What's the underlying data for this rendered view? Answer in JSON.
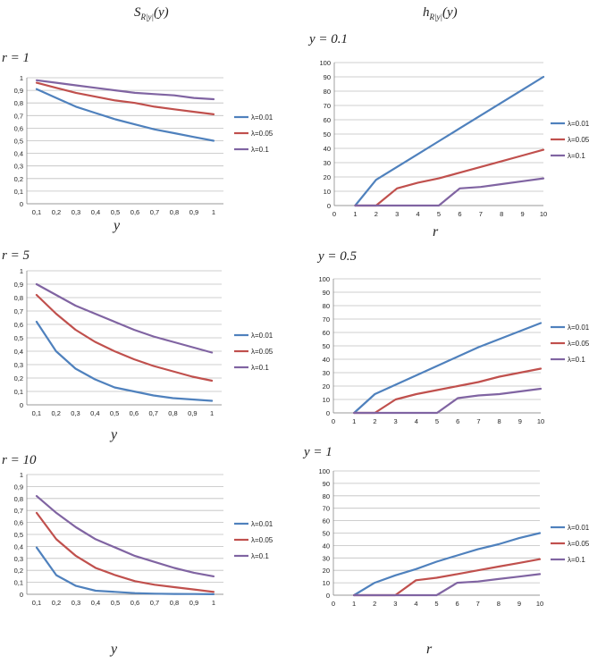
{
  "column_titles": {
    "left": "S",
    "left_sub": "R|y|",
    "left_arg": "(y)",
    "right": "h",
    "right_sub": "R|y|",
    "right_arg": "(y)"
  },
  "colors": {
    "blue": "#4f81bd",
    "red": "#c0504d",
    "purple": "#8064a2",
    "grid": "#bfbfbf",
    "axis": "#888888"
  },
  "chart_data": [
    {
      "id": "left-r1",
      "type": "line",
      "panel_label": "r = 1",
      "xlabel": "y",
      "categories": [
        "0,1",
        "0,2",
        "0,3",
        "0,4",
        "0,5",
        "0,6",
        "0,7",
        "0,8",
        "0,9",
        "1"
      ],
      "ylim": [
        0,
        1
      ],
      "yticks": [
        "0",
        "0,1",
        "0,2",
        "0,3",
        "0,4",
        "0,5",
        "0,6",
        "0,7",
        "0,8",
        "0,9",
        "1"
      ],
      "grid": true,
      "legend": "right",
      "series": [
        {
          "name": "λ=0.01",
          "color": "#4f81bd",
          "values": [
            0.91,
            0.84,
            0.77,
            0.72,
            0.67,
            0.63,
            0.59,
            0.56,
            0.53,
            0.5
          ]
        },
        {
          "name": "λ=0.05",
          "color": "#c0504d",
          "values": [
            0.96,
            0.92,
            0.88,
            0.85,
            0.82,
            0.8,
            0.77,
            0.75,
            0.73,
            0.71
          ]
        },
        {
          "name": "λ=0.1",
          "color": "#8064a2",
          "values": [
            0.98,
            0.96,
            0.94,
            0.92,
            0.9,
            0.88,
            0.87,
            0.86,
            0.84,
            0.83
          ]
        }
      ]
    },
    {
      "id": "right-y01",
      "type": "line",
      "panel_label": "y = 0.1",
      "xlabel": "r",
      "x": [
        1,
        2,
        3,
        4,
        5,
        6,
        7,
        8,
        9,
        10
      ],
      "xlim": [
        0,
        10
      ],
      "xticks": [
        "0",
        "1",
        "2",
        "3",
        "4",
        "5",
        "6",
        "7",
        "8",
        "9",
        "10"
      ],
      "ylim": [
        0,
        100
      ],
      "yticks": [
        "0",
        "10",
        "20",
        "30",
        "40",
        "50",
        "60",
        "70",
        "80",
        "90",
        "100"
      ],
      "grid": true,
      "legend": "right",
      "series": [
        {
          "name": "λ=0.01",
          "color": "#4f81bd",
          "values": [
            0,
            18,
            27,
            36,
            45,
            54,
            63,
            72,
            81,
            90
          ]
        },
        {
          "name": "λ=0.05",
          "color": "#c0504d",
          "values": [
            0,
            0,
            12,
            16,
            19,
            23,
            27,
            31,
            35,
            39
          ]
        },
        {
          "name": "λ=0.1",
          "color": "#8064a2",
          "values": [
            0,
            0,
            0,
            0,
            0,
            12,
            13,
            15,
            17,
            19
          ]
        }
      ]
    },
    {
      "id": "left-r5",
      "type": "line",
      "panel_label": "r = 5",
      "xlabel": "y",
      "categories": [
        "0,1",
        "0,2",
        "0,3",
        "0,4",
        "0,5",
        "0,6",
        "0,7",
        "0,8",
        "0,9",
        "1"
      ],
      "ylim": [
        0,
        1
      ],
      "yticks": [
        "0",
        "0,1",
        "0,2",
        "0,3",
        "0,4",
        "0,5",
        "0,6",
        "0,7",
        "0,8",
        "0,9",
        "1"
      ],
      "grid": true,
      "legend": "right",
      "series": [
        {
          "name": "λ=0.01",
          "color": "#4f81bd",
          "values": [
            0.62,
            0.4,
            0.27,
            0.19,
            0.13,
            0.1,
            0.07,
            0.05,
            0.04,
            0.03
          ]
        },
        {
          "name": "λ=0.05",
          "color": "#c0504d",
          "values": [
            0.82,
            0.68,
            0.56,
            0.47,
            0.4,
            0.34,
            0.29,
            0.25,
            0.21,
            0.18
          ]
        },
        {
          "name": "λ=0.1",
          "color": "#8064a2",
          "values": [
            0.9,
            0.82,
            0.74,
            0.68,
            0.62,
            0.56,
            0.51,
            0.47,
            0.43,
            0.39
          ]
        }
      ]
    },
    {
      "id": "right-y05",
      "type": "line",
      "panel_label": "y = 0.5",
      "xlabel": "",
      "x": [
        1,
        2,
        3,
        4,
        5,
        6,
        7,
        8,
        9,
        10
      ],
      "xlim": [
        0,
        10
      ],
      "xticks": [
        "0",
        "1",
        "2",
        "3",
        "4",
        "5",
        "6",
        "7",
        "8",
        "9",
        "10"
      ],
      "ylim": [
        0,
        100
      ],
      "yticks": [
        "0",
        "10",
        "20",
        "30",
        "40",
        "50",
        "60",
        "70",
        "80",
        "90",
        "100"
      ],
      "grid": true,
      "legend": "right",
      "series": [
        {
          "name": "λ=0.01",
          "color": "#4f81bd",
          "values": [
            0,
            14,
            21,
            28,
            35,
            42,
            49,
            55,
            61,
            67
          ]
        },
        {
          "name": "λ=0.05",
          "color": "#c0504d",
          "values": [
            0,
            0,
            10,
            14,
            17,
            20,
            23,
            27,
            30,
            33
          ]
        },
        {
          "name": "λ=0.1",
          "color": "#8064a2",
          "values": [
            0,
            0,
            0,
            0,
            0,
            11,
            13,
            14,
            16,
            18
          ]
        }
      ]
    },
    {
      "id": "left-r10",
      "type": "line",
      "panel_label": "r = 10",
      "xlabel": "y",
      "categories": [
        "0,1",
        "0,2",
        "0,3",
        "0,4",
        "0,5",
        "0,6",
        "0,7",
        "0,8",
        "0,9",
        "1"
      ],
      "ylim": [
        0,
        1
      ],
      "yticks": [
        "0",
        "0,1",
        "0,2",
        "0,3",
        "0,4",
        "0,5",
        "0,6",
        "0,7",
        "0,8",
        "0,9",
        "1"
      ],
      "grid": true,
      "legend": "right",
      "series": [
        {
          "name": "λ=0.01",
          "color": "#4f81bd",
          "values": [
            0.39,
            0.16,
            0.07,
            0.03,
            0.02,
            0.01,
            0.005,
            0.003,
            0.002,
            0.001
          ]
        },
        {
          "name": "λ=0.05",
          "color": "#c0504d",
          "values": [
            0.68,
            0.46,
            0.32,
            0.22,
            0.16,
            0.11,
            0.08,
            0.06,
            0.04,
            0.02
          ]
        },
        {
          "name": "λ=0.1",
          "color": "#8064a2",
          "values": [
            0.82,
            0.68,
            0.56,
            0.46,
            0.39,
            0.32,
            0.27,
            0.22,
            0.18,
            0.15
          ]
        }
      ]
    },
    {
      "id": "right-y1",
      "type": "line",
      "panel_label": "y = 1",
      "xlabel": "r",
      "x": [
        1,
        2,
        3,
        4,
        5,
        6,
        7,
        8,
        9,
        10
      ],
      "xlim": [
        0,
        10
      ],
      "xticks": [
        "0",
        "1",
        "2",
        "3",
        "4",
        "5",
        "6",
        "7",
        "8",
        "9",
        "10"
      ],
      "ylim": [
        0,
        100
      ],
      "yticks": [
        "0",
        "10",
        "20",
        "30",
        "40",
        "50",
        "60",
        "70",
        "80",
        "90",
        "100"
      ],
      "grid": true,
      "legend": "right",
      "series": [
        {
          "name": "λ=0.01",
          "color": "#4f81bd",
          "values": [
            0,
            10,
            16,
            21,
            27,
            32,
            37,
            41,
            46,
            50
          ]
        },
        {
          "name": "λ=0.05",
          "color": "#c0504d",
          "values": [
            0,
            0,
            0,
            12,
            14,
            17,
            20,
            23,
            26,
            29
          ]
        },
        {
          "name": "λ=0.1",
          "color": "#8064a2",
          "values": [
            0,
            0,
            0,
            0,
            0,
            10,
            11,
            13,
            15,
            17
          ]
        }
      ]
    }
  ]
}
